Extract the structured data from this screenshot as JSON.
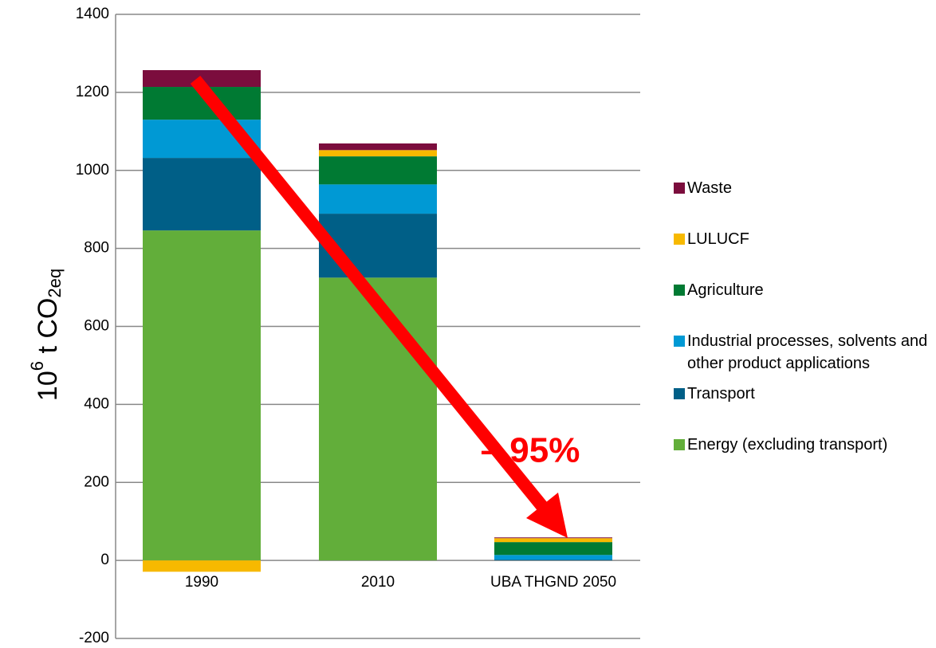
{
  "chart_data": {
    "type": "stacked_bar",
    "y_label": {
      "base": "10",
      "sup": "6",
      "mid": " t CO",
      "sub": "2eq"
    },
    "annotation": "– 95%",
    "categories": [
      "1990",
      "2010",
      "UBA THGND 2050"
    ],
    "series": [
      {
        "name": "Energy (excluding transport)",
        "color": "#62ae3a",
        "values": [
          846,
          725,
          0
        ]
      },
      {
        "name": "Transport",
        "color": "#005f87",
        "values": [
          186,
          164,
          2
        ]
      },
      {
        "name": "Industrial processes, solvents and other product applications",
        "color": "#0099d4",
        "values": [
          98,
          75,
          12
        ]
      },
      {
        "name": "Agriculture",
        "color": "#007a33",
        "values": [
          84,
          72,
          33
        ]
      },
      {
        "name": "LULUCF",
        "color": "#f7b900",
        "values": [
          -29,
          16,
          10
        ]
      },
      {
        "name": "Waste",
        "color": "#7b0d3d",
        "values": [
          43,
          17,
          2
        ]
      }
    ],
    "ylim": [
      -200,
      1400
    ],
    "yticks": [
      -200,
      0,
      200,
      400,
      600,
      800,
      1000,
      1200,
      1400
    ],
    "grid": true
  }
}
